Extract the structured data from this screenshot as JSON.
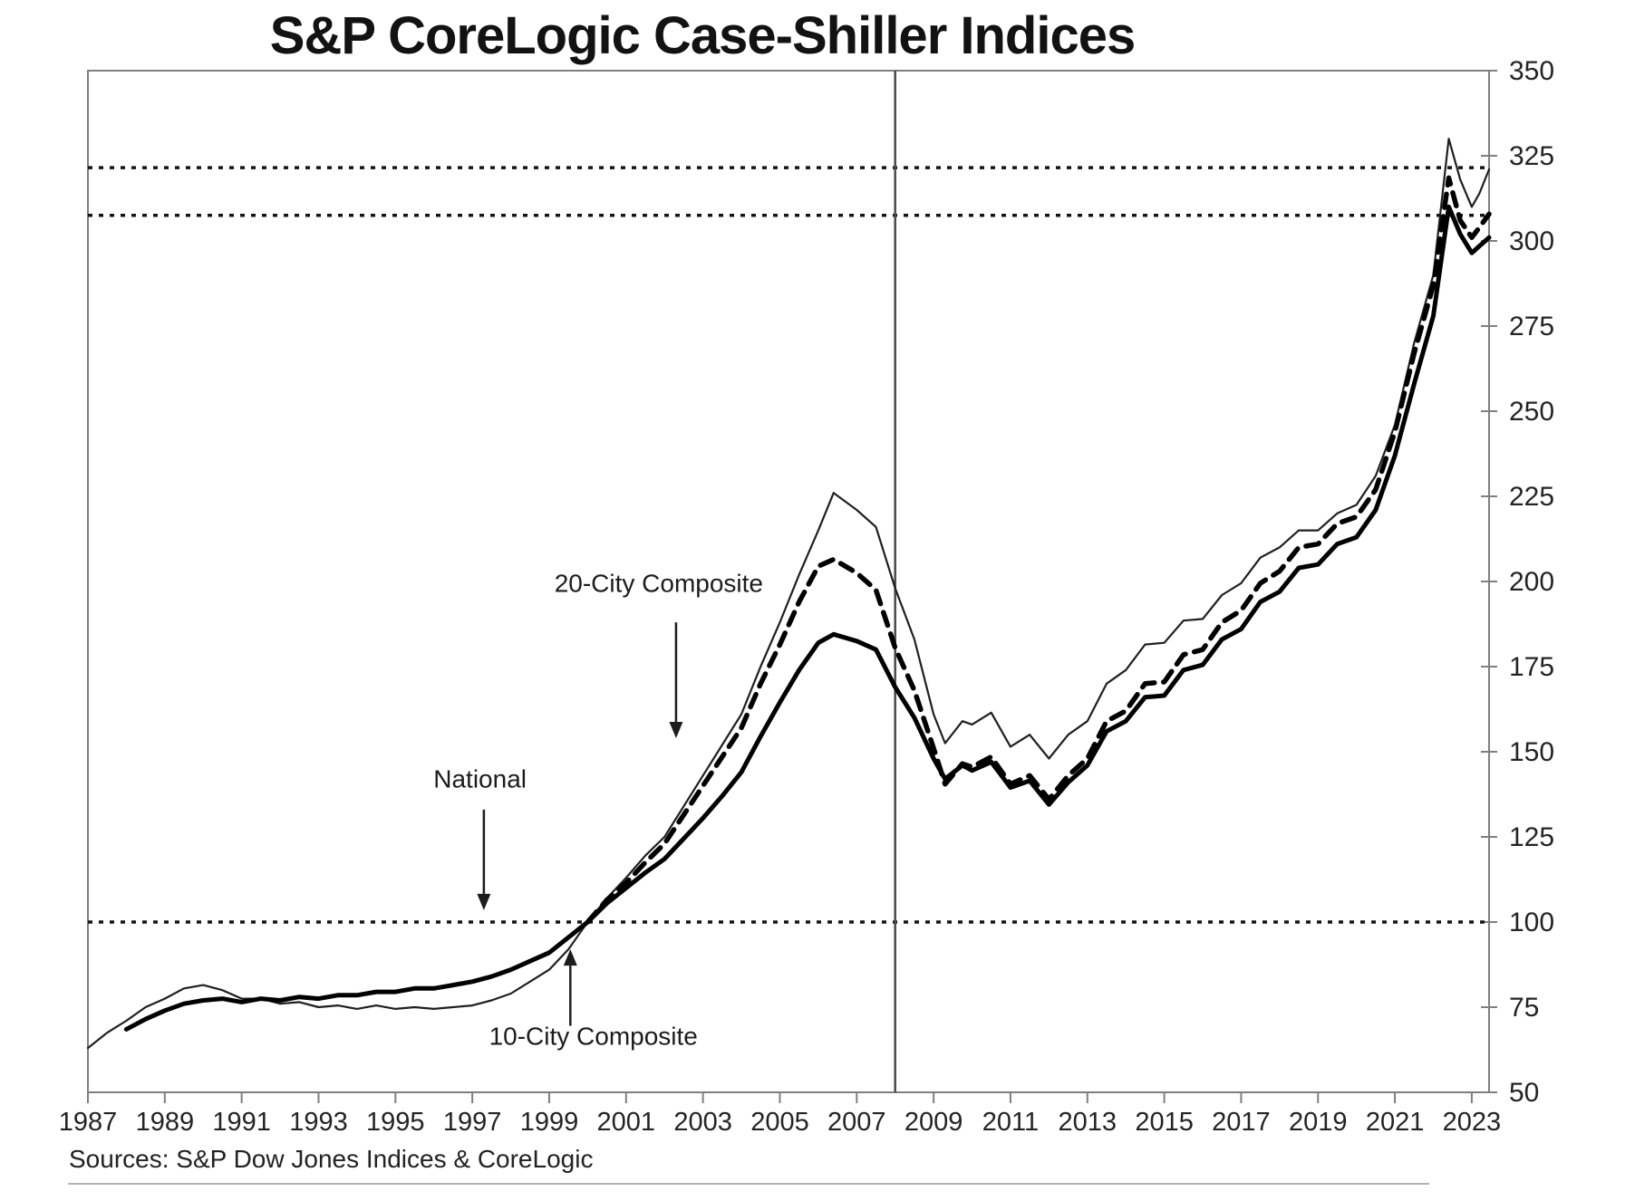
{
  "page": {
    "title": "S&P CoreLogic Case-Shiller Indices",
    "source_note": "Sources: S&P Dow Jones Indices & CoreLogic"
  },
  "colors": {
    "frame": "#7f7f7f",
    "curve": "#000000",
    "thin_curve": "#1f1f1f",
    "reference_line": "#141414",
    "vertical_line": "#4a4a4a",
    "tick_label": "#242424",
    "annotation": "#1c1c1c"
  },
  "chart_data": {
    "type": "line",
    "title": "S&P CoreLogic Case-Shiller Indices",
    "xlabel": "",
    "ylabel": "",
    "grid": false,
    "legend_position": "inline-annotations",
    "xlim": [
      1987,
      2023.45
    ],
    "ylim": [
      50,
      350
    ],
    "x_ticks": [
      1987,
      1989,
      1991,
      1993,
      1995,
      1997,
      1999,
      2001,
      2003,
      2005,
      2007,
      2009,
      2011,
      2013,
      2015,
      2017,
      2019,
      2021,
      2023
    ],
    "y_ticks": [
      50,
      75,
      100,
      125,
      150,
      175,
      200,
      225,
      250,
      275,
      300,
      325,
      350
    ],
    "series": [
      {
        "name": "10-City Composite",
        "line": "thin-solid",
        "x": [
          1987,
          1987.5,
          1988,
          1988.5,
          1989,
          1989.5,
          1990,
          1990.5,
          1991,
          1991.5,
          1992,
          1992.5,
          1993,
          1993.5,
          1994,
          1994.5,
          1995,
          1995.5,
          1996,
          1996.5,
          1997,
          1997.5,
          1998,
          1998.5,
          1999,
          1999.5,
          2000,
          2000.5,
          2001,
          2001.5,
          2002,
          2002.5,
          2003,
          2003.5,
          2004,
          2004.5,
          2005,
          2005.5,
          2006,
          2006.4,
          2007,
          2007.5,
          2008,
          2008.5,
          2009,
          2009.3,
          2009.75,
          2010,
          2010.5,
          2011,
          2011.5,
          2012,
          2012.5,
          2013,
          2013.5,
          2014,
          2014.5,
          2015,
          2015.5,
          2016,
          2016.5,
          2017,
          2017.5,
          2018,
          2018.5,
          2019,
          2019.5,
          2020,
          2020.5,
          2021,
          2021.5,
          2022,
          2022.4,
          2022.7,
          2023,
          2023.2,
          2023.45
        ],
        "values": [
          63,
          67.5,
          71,
          75,
          77.5,
          80.5,
          81.5,
          80,
          77.5,
          77.5,
          76,
          76.5,
          75,
          75.5,
          74.5,
          75.5,
          74.5,
          75,
          74.5,
          75,
          75.5,
          77,
          79,
          82.5,
          86,
          92,
          100,
          107,
          113,
          119.5,
          125,
          134,
          143,
          152,
          161,
          175,
          188,
          202,
          215,
          226,
          221,
          216,
          198,
          183,
          161,
          152.5,
          159,
          158,
          161.5,
          151.5,
          155,
          148,
          155,
          159,
          170,
          174,
          181.5,
          182,
          188.5,
          189,
          196,
          199.5,
          207,
          210,
          215,
          215,
          220,
          222.5,
          231,
          246,
          270,
          290,
          330,
          318,
          310,
          314,
          321
        ]
      },
      {
        "name": "20-City Composite",
        "line": "bold-dashed",
        "x": [
          2000,
          2000.5,
          2001,
          2001.5,
          2002,
          2002.5,
          2003,
          2003.5,
          2004,
          2004.5,
          2005,
          2005.5,
          2006,
          2006.4,
          2007,
          2007.5,
          2008,
          2008.5,
          2009,
          2009.3,
          2009.75,
          2010,
          2010.5,
          2011,
          2011.5,
          2012,
          2012.5,
          2013,
          2013.5,
          2014,
          2014.5,
          2015,
          2015.5,
          2016,
          2016.5,
          2017,
          2017.5,
          2018,
          2018.5,
          2019,
          2019.5,
          2020,
          2020.5,
          2021,
          2021.5,
          2022,
          2022.4,
          2022.7,
          2023,
          2023.2,
          2023.45
        ],
        "values": [
          100,
          106.5,
          111.5,
          117.5,
          123,
          131.5,
          140,
          148.5,
          157,
          170,
          181.5,
          194,
          204.5,
          206.5,
          202.5,
          197.5,
          180.5,
          168,
          151,
          140.5,
          146.5,
          145.5,
          148.5,
          140.5,
          143,
          136,
          143,
          148,
          159,
          162,
          170,
          170.5,
          178.5,
          180,
          188,
          191.5,
          199.5,
          203,
          210,
          211,
          217,
          219,
          227,
          244,
          267,
          287,
          318.5,
          306,
          301,
          304,
          307.9
        ]
      },
      {
        "name": "National",
        "line": "bold-solid",
        "x": [
          1988,
          1988.5,
          1989,
          1989.5,
          1990,
          1990.5,
          1991,
          1991.5,
          1992,
          1992.5,
          1993,
          1993.5,
          1994,
          1994.5,
          1995,
          1995.5,
          1996,
          1996.5,
          1997,
          1997.5,
          1998,
          1998.5,
          1999,
          1999.5,
          2000,
          2000.5,
          2001,
          2001.5,
          2002,
          2002.5,
          2003,
          2003.5,
          2004,
          2004.5,
          2005,
          2005.5,
          2006,
          2006.4,
          2007,
          2007.5,
          2008,
          2008.5,
          2009,
          2009.3,
          2009.75,
          2010,
          2010.5,
          2011,
          2011.5,
          2012,
          2012.5,
          2013,
          2013.5,
          2014,
          2014.5,
          2015,
          2015.5,
          2016,
          2016.5,
          2017,
          2017.5,
          2018,
          2018.5,
          2019,
          2019.5,
          2020,
          2020.5,
          2021,
          2021.5,
          2022,
          2022.4,
          2022.7,
          2023,
          2023.2,
          2023.45
        ],
        "values": [
          68.5,
          71.5,
          74,
          76,
          77,
          77.5,
          76.5,
          77.5,
          77,
          78,
          77.5,
          78.5,
          78.5,
          79.5,
          79.5,
          80.5,
          80.5,
          81.5,
          82.5,
          84,
          86,
          88.5,
          91,
          95.5,
          100,
          105.5,
          110,
          114.5,
          118.5,
          124.5,
          130.5,
          137,
          144,
          154.5,
          164.5,
          174,
          182,
          184.5,
          182.5,
          180,
          169,
          160,
          148,
          142,
          146,
          144.5,
          147,
          139.5,
          141.5,
          134.5,
          141,
          146,
          156,
          159,
          166,
          166.5,
          174,
          175.5,
          183,
          186,
          194,
          197,
          204,
          205,
          211,
          213,
          221,
          237,
          258,
          278,
          310,
          302,
          296.5,
          298.5,
          301
        ]
      }
    ],
    "reference_lines": {
      "horizontal_dotted": [
        {
          "y": 321.5
        },
        {
          "y": 307.5
        },
        {
          "y": 100
        }
      ],
      "vertical_solid": [
        {
          "x": 2008
        }
      ]
    },
    "annotations": [
      {
        "label": "20-City Composite",
        "text_at": {
          "x": 2001.85,
          "y": 197
        },
        "arrow": {
          "from": {
            "x": 2002.3,
            "y": 188
          },
          "to": {
            "x": 2002.3,
            "y": 154
          }
        }
      },
      {
        "label": "National",
        "text_at": {
          "x": 1997.2,
          "y": 139.5
        },
        "arrow": {
          "from": {
            "x": 1997.3,
            "y": 133
          },
          "to": {
            "x": 1997.3,
            "y": 103.5
          }
        }
      },
      {
        "label": "10-City Composite",
        "text_at": {
          "x": 2000.15,
          "y": 64
        },
        "arrow": {
          "from": {
            "x": 1999.55,
            "y": 69.5
          },
          "to": {
            "x": 1999.55,
            "y": 92
          }
        }
      }
    ],
    "source": "Sources: S&P Dow Jones Indices & CoreLogic"
  }
}
